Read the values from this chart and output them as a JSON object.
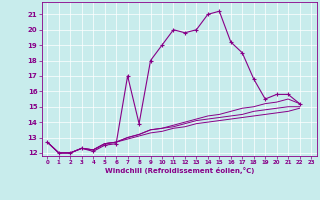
{
  "xlabel": "Windchill (Refroidissement éolien,°C)",
  "ylabel": "",
  "background_color": "#c8ecec",
  "line_color": "#880088",
  "xlim": [
    -0.5,
    23.5
  ],
  "ylim": [
    11.8,
    21.8
  ],
  "yticks": [
    12,
    13,
    14,
    15,
    16,
    17,
    18,
    19,
    20,
    21
  ],
  "xticks": [
    0,
    1,
    2,
    3,
    4,
    5,
    6,
    7,
    8,
    9,
    10,
    11,
    12,
    13,
    14,
    15,
    16,
    17,
    18,
    19,
    20,
    21,
    22,
    23
  ],
  "series": [
    [
      12.7,
      12.0,
      12.0,
      12.3,
      12.1,
      12.5,
      12.6,
      17.0,
      13.9,
      18.0,
      19.0,
      20.0,
      19.8,
      20.0,
      21.0,
      21.2,
      19.2,
      18.5,
      16.8,
      15.5,
      15.8,
      15.8,
      15.2
    ],
    [
      12.7,
      12.0,
      12.0,
      12.3,
      12.2,
      12.6,
      12.7,
      13.0,
      13.2,
      13.5,
      13.6,
      13.8,
      14.0,
      14.2,
      14.4,
      14.5,
      14.7,
      14.9,
      15.0,
      15.2,
      15.3,
      15.5,
      15.2
    ],
    [
      12.7,
      12.0,
      12.0,
      12.3,
      12.2,
      12.6,
      12.7,
      13.0,
      13.2,
      13.5,
      13.6,
      13.7,
      13.9,
      14.1,
      14.2,
      14.3,
      14.4,
      14.5,
      14.7,
      14.8,
      14.9,
      15.0,
      15.0
    ],
    [
      12.7,
      12.0,
      12.0,
      12.3,
      12.2,
      12.6,
      12.7,
      12.9,
      13.1,
      13.3,
      13.4,
      13.6,
      13.7,
      13.9,
      14.0,
      14.1,
      14.2,
      14.3,
      14.4,
      14.5,
      14.6,
      14.7,
      14.9
    ]
  ]
}
